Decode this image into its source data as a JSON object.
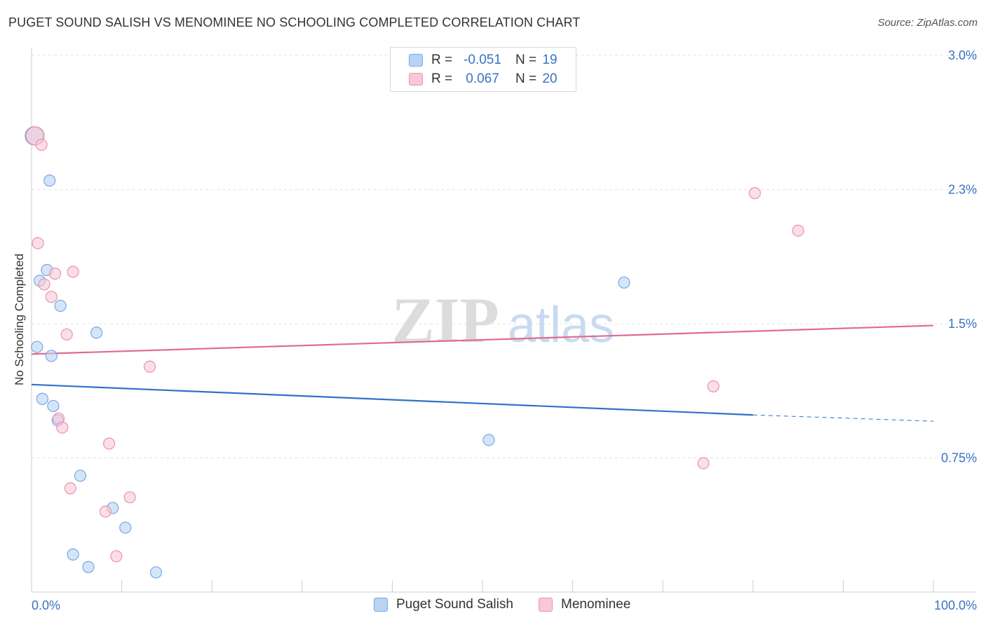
{
  "title": "PUGET SOUND SALISH VS MENOMINEE NO SCHOOLING COMPLETED CORRELATION CHART",
  "source": "Source: ZipAtlas.com",
  "watermark": {
    "zip": "ZIP",
    "atlas": "atlas"
  },
  "legend": {
    "rows": [
      {
        "r_label": "R =",
        "r_value": "-0.051",
        "n_label": "N =",
        "n_value": "19",
        "fill": "#b9d3f5",
        "stroke": "#7aa6e3"
      },
      {
        "r_label": "R =",
        "r_value": "0.067",
        "n_label": "N =",
        "n_value": "20",
        "fill": "#f8c8d6",
        "stroke": "#eb92ad"
      }
    ]
  },
  "bottom_legend": [
    {
      "label": "Puget Sound Salish",
      "fill": "#b9d3f5",
      "stroke": "#7aa6e3"
    },
    {
      "label": "Menominee",
      "fill": "#f8c8d6",
      "stroke": "#eb92ad"
    }
  ],
  "chart_data": {
    "type": "scatter",
    "title": "PUGET SOUND SALISH VS MENOMINEE NO SCHOOLING COMPLETED CORRELATION CHART",
    "xlabel": "",
    "ylabel": "No Schooling Completed",
    "xlim": [
      0,
      100
    ],
    "ylim": [
      0,
      3.0
    ],
    "x_tick_labels": [
      "0.0%",
      "100.0%"
    ],
    "y_ticks": [
      0.75,
      1.5,
      2.25,
      3.0
    ],
    "y_tick_labels": [
      "0.75%",
      "1.5%",
      "2.3%",
      "3.0%"
    ],
    "grid": true,
    "legend_position": "top-center",
    "series": [
      {
        "name": "Puget Sound Salish",
        "color": "#7aa6e3",
        "fill": "#b9d3f5",
        "trend_color": "#2f72c9",
        "trend": {
          "x0": 0,
          "y0": 1.16,
          "x1": 80,
          "y1": 0.99,
          "dash_to_x": 100,
          "dash_to_y": 0.955
        },
        "points": [
          [
            0.3,
            2.55
          ],
          [
            2.0,
            2.3
          ],
          [
            0.6,
            1.37
          ],
          [
            1.7,
            1.8
          ],
          [
            0.9,
            1.74
          ],
          [
            3.2,
            1.6
          ],
          [
            7.2,
            1.45
          ],
          [
            2.2,
            1.32
          ],
          [
            1.2,
            1.08
          ],
          [
            2.4,
            1.04
          ],
          [
            2.9,
            0.96
          ],
          [
            5.4,
            0.65
          ],
          [
            9.0,
            0.47
          ],
          [
            10.4,
            0.36
          ],
          [
            4.6,
            0.21
          ],
          [
            6.3,
            0.14
          ],
          [
            13.8,
            0.11
          ],
          [
            50.7,
            0.85
          ],
          [
            65.7,
            1.73
          ]
        ]
      },
      {
        "name": "Menominee",
        "color": "#eb92ad",
        "fill": "#f8c8d6",
        "trend_color": "#e06a94",
        "trend": {
          "x0": 0,
          "y0": 1.33,
          "x1": 100,
          "y1": 1.49
        },
        "points": [
          [
            0.4,
            2.55
          ],
          [
            1.1,
            2.5
          ],
          [
            0.7,
            1.95
          ],
          [
            1.4,
            1.72
          ],
          [
            2.2,
            1.65
          ],
          [
            2.6,
            1.78
          ],
          [
            4.6,
            1.79
          ],
          [
            3.9,
            1.44
          ],
          [
            13.1,
            1.26
          ],
          [
            3.0,
            0.97
          ],
          [
            3.4,
            0.92
          ],
          [
            8.6,
            0.83
          ],
          [
            4.3,
            0.58
          ],
          [
            10.9,
            0.53
          ],
          [
            8.2,
            0.45
          ],
          [
            9.4,
            0.2
          ],
          [
            74.5,
            0.72
          ],
          [
            75.6,
            1.15
          ],
          [
            80.2,
            2.23
          ],
          [
            85.0,
            2.02
          ]
        ]
      }
    ]
  }
}
